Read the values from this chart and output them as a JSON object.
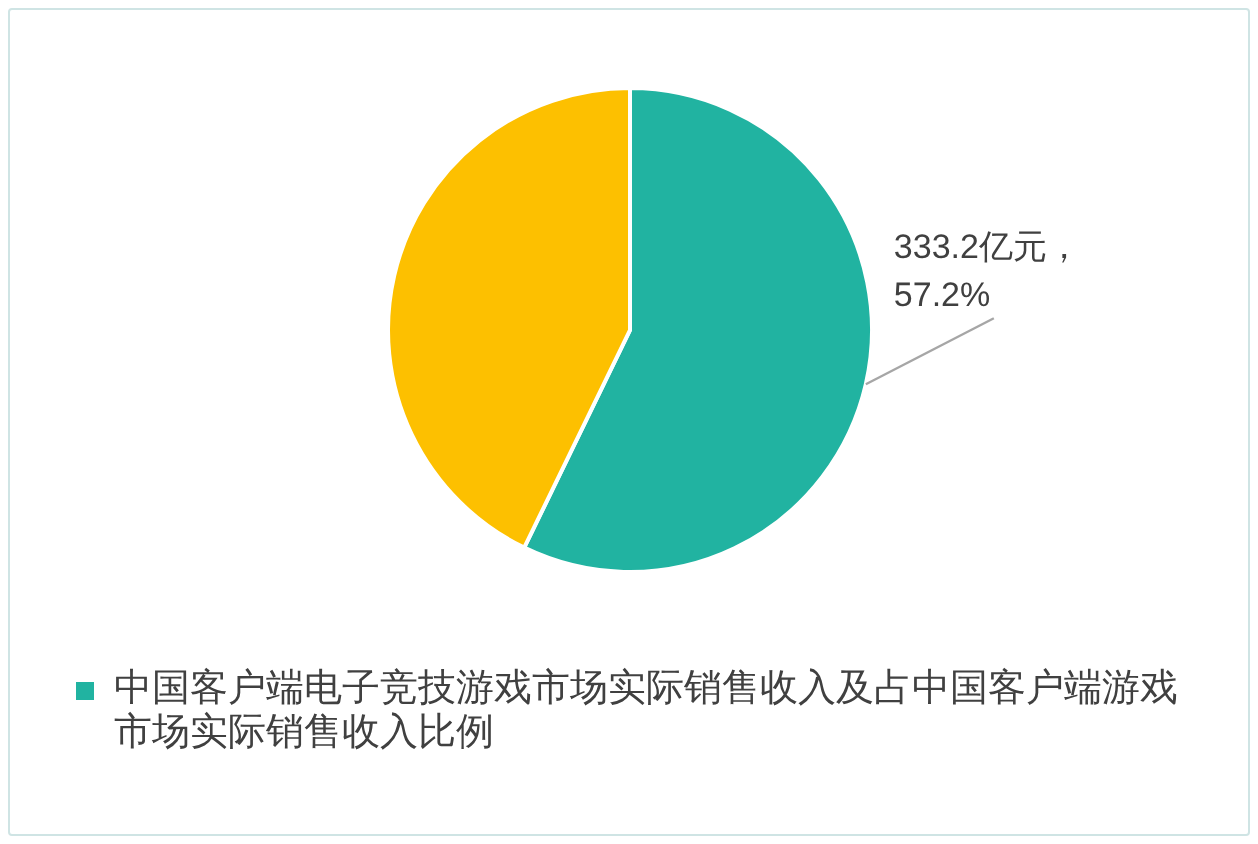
{
  "chart_data": {
    "type": "pie",
    "categories": [
      "中国客户端电子竞技游戏市场实际销售收入及占中国客户端游戏市场实际销售收入比例",
      null
    ],
    "values": [
      57.2,
      42.8
    ],
    "colors": [
      "#21b3a1",
      "#fdc000"
    ],
    "value_labels": [
      "333.2亿元，\n57.2%",
      null
    ],
    "legend": "bottom"
  }
}
